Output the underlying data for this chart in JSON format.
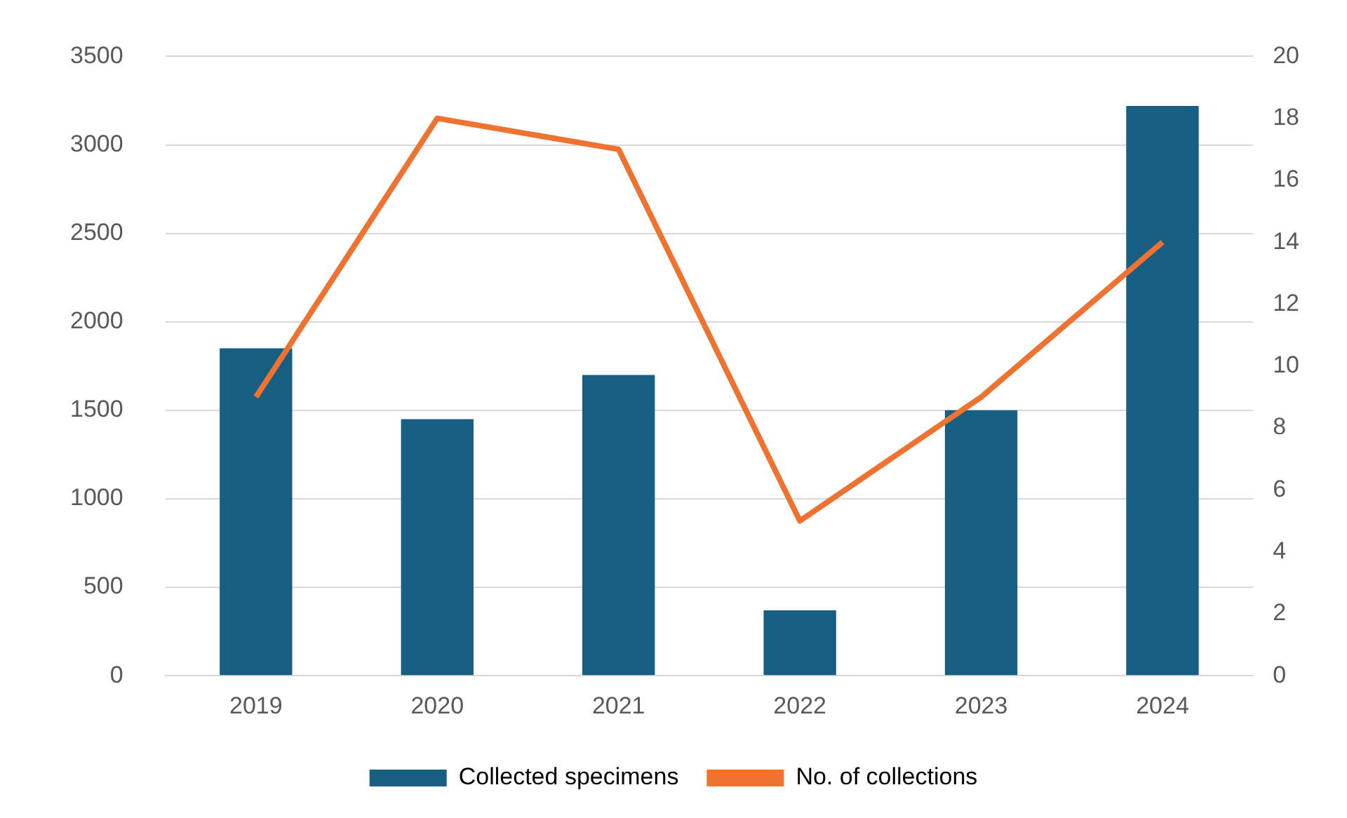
{
  "chart_data": {
    "type": "bar",
    "categories": [
      "2019",
      "2020",
      "2021",
      "2022",
      "2023",
      "2024"
    ],
    "series": [
      {
        "name": "Collected specimens",
        "color": "#165e82",
        "values": [
          1850,
          1450,
          1700,
          370,
          1500,
          3220
        ]
      },
      {
        "name": "No. of collections",
        "type": "line",
        "axis": "y2",
        "color": "#ee7230",
        "values": [
          9,
          18,
          17,
          5,
          9,
          14
        ]
      }
    ],
    "ylim": [
      0,
      3500
    ],
    "yticks": [
      0,
      500,
      1000,
      1500,
      2000,
      2500,
      3000,
      3500
    ],
    "y2lim": [
      0,
      20
    ],
    "y2ticks": [
      0,
      2,
      4,
      6,
      8,
      10,
      12,
      14,
      16,
      18,
      20
    ],
    "grid": "y",
    "legend": "bottom",
    "marker": "none"
  }
}
